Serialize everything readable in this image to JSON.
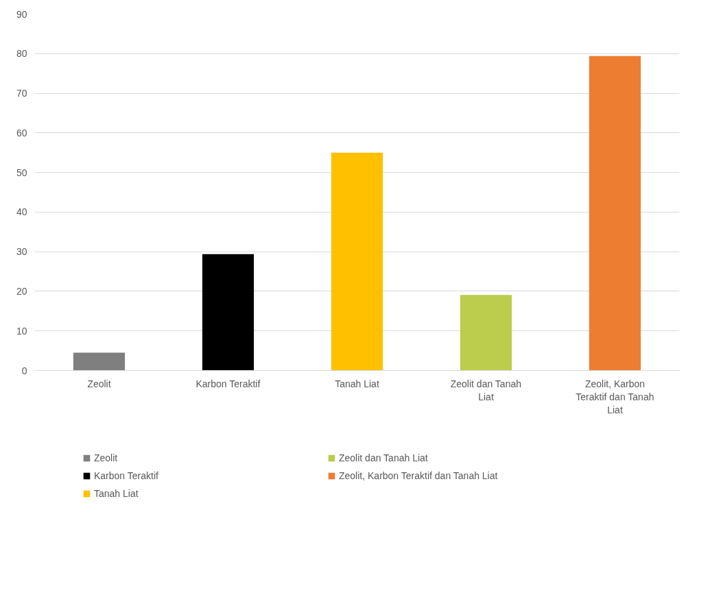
{
  "chart_data": {
    "type": "bar",
    "categories": [
      "Zeolit",
      "Karbon Teraktif",
      "Tanah Liat",
      "Zeolit dan Tanah Liat",
      "Zeolit, Karbon Teraktif dan Tanah Liat"
    ],
    "series": [
      {
        "name": "Zeolit",
        "color": "#7f7f7f",
        "values": [
          4.5,
          null,
          null,
          null,
          null
        ]
      },
      {
        "name": "Karbon Teraktif",
        "color": "#000000",
        "values": [
          null,
          29.4,
          null,
          null,
          null
        ]
      },
      {
        "name": "Tanah Liat",
        "color": "#ffc000",
        "values": [
          null,
          null,
          55,
          null,
          null
        ]
      },
      {
        "name": "Zeolit dan Tanah Liat",
        "color": "#bccc4c",
        "values": [
          null,
          null,
          null,
          19.1,
          null
        ]
      },
      {
        "name": "Zeolit, Karbon Teraktif dan Tanah Liat",
        "color": "#ed7d31",
        "values": [
          null,
          null,
          null,
          null,
          79.4
        ]
      }
    ],
    "ylim": [
      0,
      90
    ],
    "yticks": [
      0,
      10,
      20,
      30,
      40,
      50,
      60,
      70,
      80,
      90
    ],
    "grid": "y",
    "legend": "bottom"
  }
}
